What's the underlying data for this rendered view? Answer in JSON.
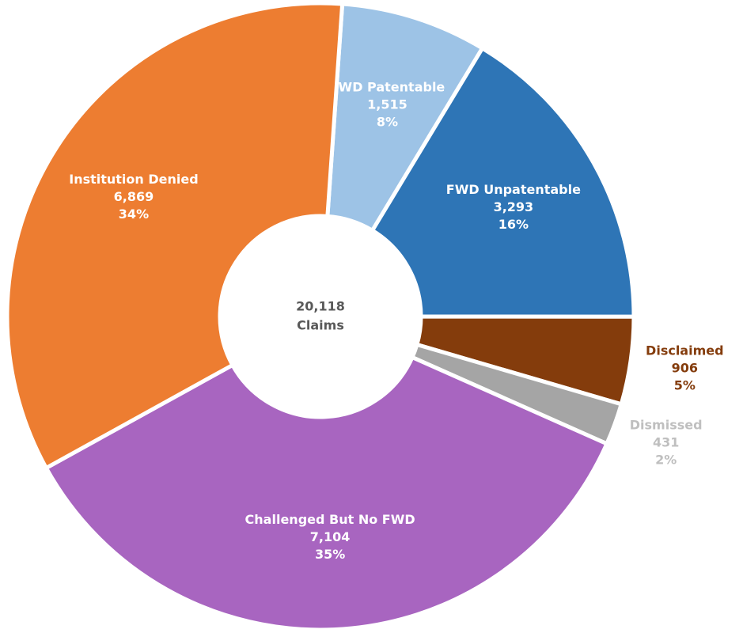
{
  "chart_data": {
    "type": "pie",
    "donut": true,
    "categories": [
      "FWD Patentable",
      "FWD Unpatentable",
      "Disclaimed",
      "Dismissed",
      "Challenged But No FWD",
      "Institution Denied"
    ],
    "values": [
      1515,
      3293,
      906,
      431,
      7104,
      6869
    ],
    "value_labels": [
      "1,515",
      "3,293",
      "906",
      "431",
      "7,104",
      "6,869"
    ],
    "percents": [
      8,
      16,
      5,
      2,
      35,
      34
    ],
    "percent_labels": [
      "8%",
      "16%",
      "5%",
      "2%",
      "35%",
      "34%"
    ],
    "colors": [
      "#9dc3e6",
      "#2e75b6",
      "#843c0c",
      "#a5a5a5",
      "#a865c0",
      "#ed7d31"
    ],
    "total": 20118,
    "total_label": "20,118",
    "center_text": "Claims"
  }
}
